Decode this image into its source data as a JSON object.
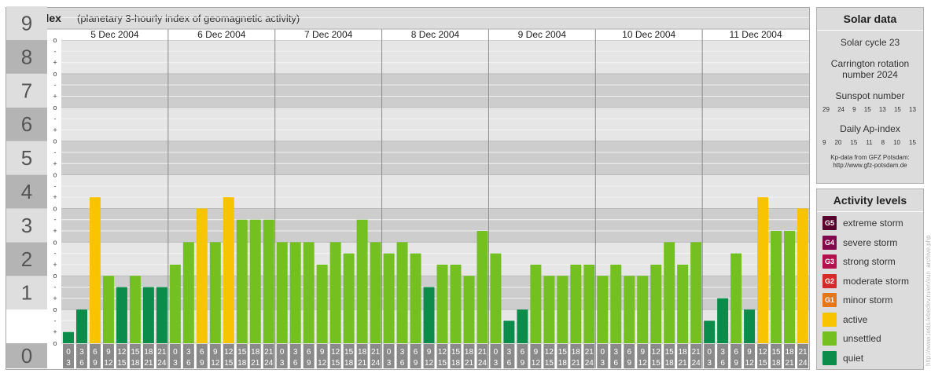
{
  "header": {
    "title": "Kp-index",
    "subtitle": "(planetary 3-hourly index of geomagnetic activity)"
  },
  "chart_data": {
    "type": "bar",
    "title": "Kp-index",
    "subtitle": "(planetary 3-hourly index of geomagnetic activity)",
    "days": [
      "5 Dec 2004",
      "6 Dec 2004",
      "7 Dec 2004",
      "8 Dec 2004",
      "9 Dec 2004",
      "10 Dec 2004",
      "11 Dec 2004"
    ],
    "hour_starts": [
      "0",
      "3",
      "6",
      "9",
      "12",
      "15",
      "18",
      "21"
    ],
    "hour_ends": [
      "3",
      "6",
      "9",
      "12",
      "15",
      "18",
      "21",
      "24"
    ],
    "ylim": [
      0,
      9
    ],
    "yticks": [
      "0",
      "1",
      "2",
      "3",
      "4",
      "5",
      "6",
      "7",
      "8",
      "9"
    ],
    "sub_ticks": [
      "-",
      "o",
      "+"
    ],
    "values": [
      0.333,
      1.0,
      4.333,
      2.0,
      1.667,
      2.0,
      1.667,
      1.667,
      2.333,
      3.0,
      4.0,
      3.0,
      4.333,
      3.667,
      3.667,
      3.667,
      3.0,
      3.0,
      3.0,
      2.333,
      3.0,
      2.667,
      3.667,
      3.0,
      2.667,
      3.0,
      2.667,
      1.667,
      2.333,
      2.333,
      2.0,
      3.333,
      2.667,
      0.667,
      1.0,
      2.333,
      2.0,
      2.0,
      2.333,
      2.333,
      2.0,
      2.333,
      2.0,
      2.0,
      2.333,
      3.0,
      2.333,
      3.0,
      0.667,
      1.333,
      2.667,
      1.0,
      4.333,
      3.333,
      3.333,
      4.0
    ],
    "thresholds": {
      "quiet_below": 2,
      "unsettled_below": 4,
      "active_below": 5
    },
    "colors": {
      "quiet": "#0b8c4b",
      "unsettled": "#73c020",
      "active": "#f8c300",
      "minor": "#e5761a",
      "moderate": "#d52a2a",
      "strong": "#b2114b",
      "severe": "#800a4b",
      "extreme": "#58062e"
    },
    "grid": true
  },
  "solar": {
    "heading": "Solar data",
    "cycle": "Solar cycle 23",
    "carrington_line1": "Carrington rotation",
    "carrington_line2": "number 2024",
    "sunspot_label": "Sunspot number",
    "sunspot_values": [
      "29",
      "24",
      "9",
      "15",
      "13",
      "15",
      "13"
    ],
    "ap_label": "Daily Ap-index",
    "ap_values": [
      "9",
      "20",
      "15",
      "11",
      "8",
      "10",
      "15"
    ],
    "source_line1": "Kp-data from GFZ Potsdam:",
    "source_line2": "http://www.gfz-potsdam.de"
  },
  "activity": {
    "heading": "Activity levels",
    "levels": [
      {
        "code": "G5",
        "label": "extreme storm",
        "color": "#58062e"
      },
      {
        "code": "G4",
        "label": "severe storm",
        "color": "#800a4b"
      },
      {
        "code": "G3",
        "label": "strong storm",
        "color": "#b2114b"
      },
      {
        "code": "G2",
        "label": "moderate storm",
        "color": "#d52a2a"
      },
      {
        "code": "G1",
        "label": "minor storm",
        "color": "#e5761a"
      },
      {
        "code": "",
        "label": "active",
        "color": "#f8c300"
      },
      {
        "code": "",
        "label": "unsettled",
        "color": "#73c020"
      },
      {
        "code": "",
        "label": "quiet",
        "color": "#0b8c4b"
      }
    ]
  },
  "credit": "http://www.tesis.lebedev.ru/en/sun_archive.php"
}
